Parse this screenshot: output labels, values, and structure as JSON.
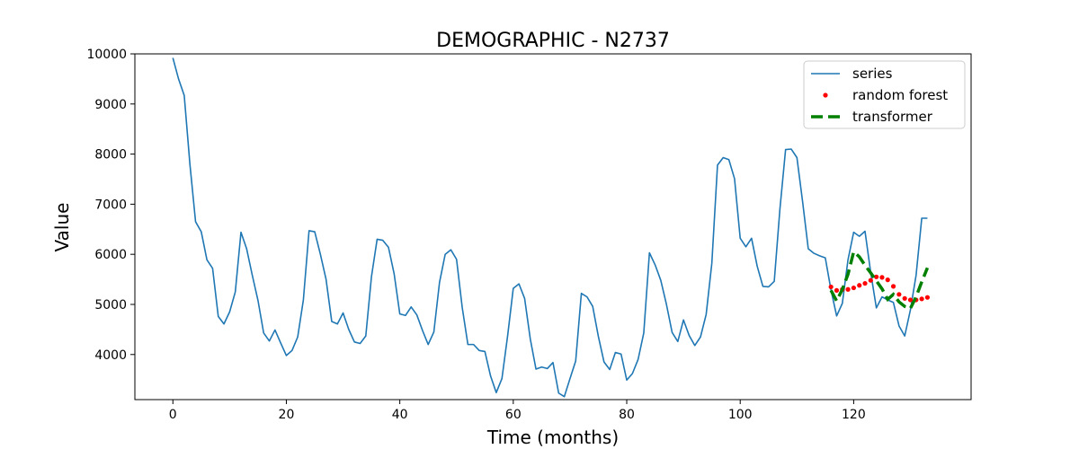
{
  "chart_data": {
    "type": "line",
    "title": "DEMOGRAPHIC - N2737",
    "xlabel": "Time (months)",
    "ylabel": "Value",
    "xlim": [
      -6.7,
      140.7
    ],
    "ylim": [
      3100,
      10000
    ],
    "xticks": [
      0,
      20,
      40,
      60,
      80,
      100,
      120
    ],
    "yticks": [
      4000,
      5000,
      6000,
      7000,
      8000,
      9000,
      10000
    ],
    "grid": false,
    "legend_position": "top-right",
    "series": [
      {
        "name": "series",
        "style": "line",
        "color": "#1f77b4",
        "x": [
          0,
          1,
          2,
          3,
          4,
          5,
          6,
          7,
          8,
          9,
          10,
          11,
          12,
          13,
          14,
          15,
          16,
          17,
          18,
          19,
          20,
          21,
          22,
          23,
          24,
          25,
          26,
          27,
          28,
          29,
          30,
          31,
          32,
          33,
          34,
          35,
          36,
          37,
          38,
          39,
          40,
          41,
          42,
          43,
          44,
          45,
          46,
          47,
          48,
          49,
          50,
          51,
          52,
          53,
          54,
          55,
          56,
          57,
          58,
          59,
          60,
          61,
          62,
          63,
          64,
          65,
          66,
          67,
          68,
          69,
          70,
          71,
          72,
          73,
          74,
          75,
          76,
          77,
          78,
          79,
          80,
          81,
          82,
          83,
          84,
          85,
          86,
          87,
          88,
          89,
          90,
          91,
          92,
          93,
          94,
          95,
          96,
          97,
          98,
          99,
          100,
          101,
          102,
          103,
          104,
          105,
          106,
          107,
          108,
          109,
          110,
          111,
          112,
          113,
          114,
          115,
          116,
          117,
          118,
          119,
          120,
          121,
          122,
          123,
          124,
          125,
          126,
          127,
          128,
          129,
          130,
          131,
          132,
          133
        ],
        "y": [
          9920,
          9500,
          9170,
          7800,
          6650,
          6450,
          5890,
          5720,
          4760,
          4610,
          4850,
          5250,
          6440,
          6110,
          5580,
          5080,
          4430,
          4270,
          4490,
          4230,
          3980,
          4080,
          4350,
          5090,
          6470,
          6450,
          6000,
          5500,
          4660,
          4610,
          4830,
          4500,
          4250,
          4220,
          4370,
          5550,
          6300,
          6280,
          6140,
          5610,
          4810,
          4780,
          4950,
          4790,
          4480,
          4200,
          4450,
          5440,
          6000,
          6090,
          5900,
          4940,
          4200,
          4200,
          4080,
          4060,
          3570,
          3240,
          3520,
          4370,
          5320,
          5410,
          5120,
          4310,
          3710,
          3750,
          3720,
          3840,
          3230,
          3160,
          3520,
          3870,
          5220,
          5150,
          4960,
          4360,
          3850,
          3700,
          4040,
          4010,
          3490,
          3620,
          3900,
          4430,
          6030,
          5790,
          5480,
          5000,
          4440,
          4260,
          4690,
          4380,
          4180,
          4350,
          4800,
          5820,
          7780,
          7930,
          7890,
          7510,
          6320,
          6150,
          6320,
          5760,
          5360,
          5350,
          5460,
          6900,
          8090,
          8100,
          7930,
          7050,
          6110,
          6020,
          5970,
          5930,
          5290,
          4770,
          5020,
          5890,
          6440,
          6360,
          6460,
          5640,
          4930,
          5150,
          5090,
          5040,
          4570,
          4370,
          4890,
          5580,
          6720,
          6720
        ]
      },
      {
        "name": "random forest",
        "style": "dots",
        "color": "#ff0000",
        "x": [
          116,
          117,
          118,
          119,
          120,
          121,
          122,
          123,
          124,
          125,
          126,
          127,
          128,
          129,
          130,
          131,
          132,
          133
        ],
        "y": [
          5350,
          5280,
          5300,
          5300,
          5330,
          5380,
          5420,
          5480,
          5550,
          5540,
          5490,
          5360,
          5200,
          5120,
          5090,
          5090,
          5110,
          5140
        ]
      },
      {
        "name": "transformer",
        "style": "dashed",
        "color": "#008000",
        "x": [
          116,
          117,
          118,
          119,
          120,
          121,
          122,
          123,
          124,
          125,
          126,
          127,
          128,
          129,
          130,
          131,
          132,
          133
        ],
        "y": [
          5280,
          5070,
          5300,
          5600,
          6050,
          5950,
          5780,
          5630,
          5470,
          5310,
          5100,
          5200,
          5050,
          4960,
          4920,
          5150,
          5450,
          5730
        ]
      }
    ]
  }
}
